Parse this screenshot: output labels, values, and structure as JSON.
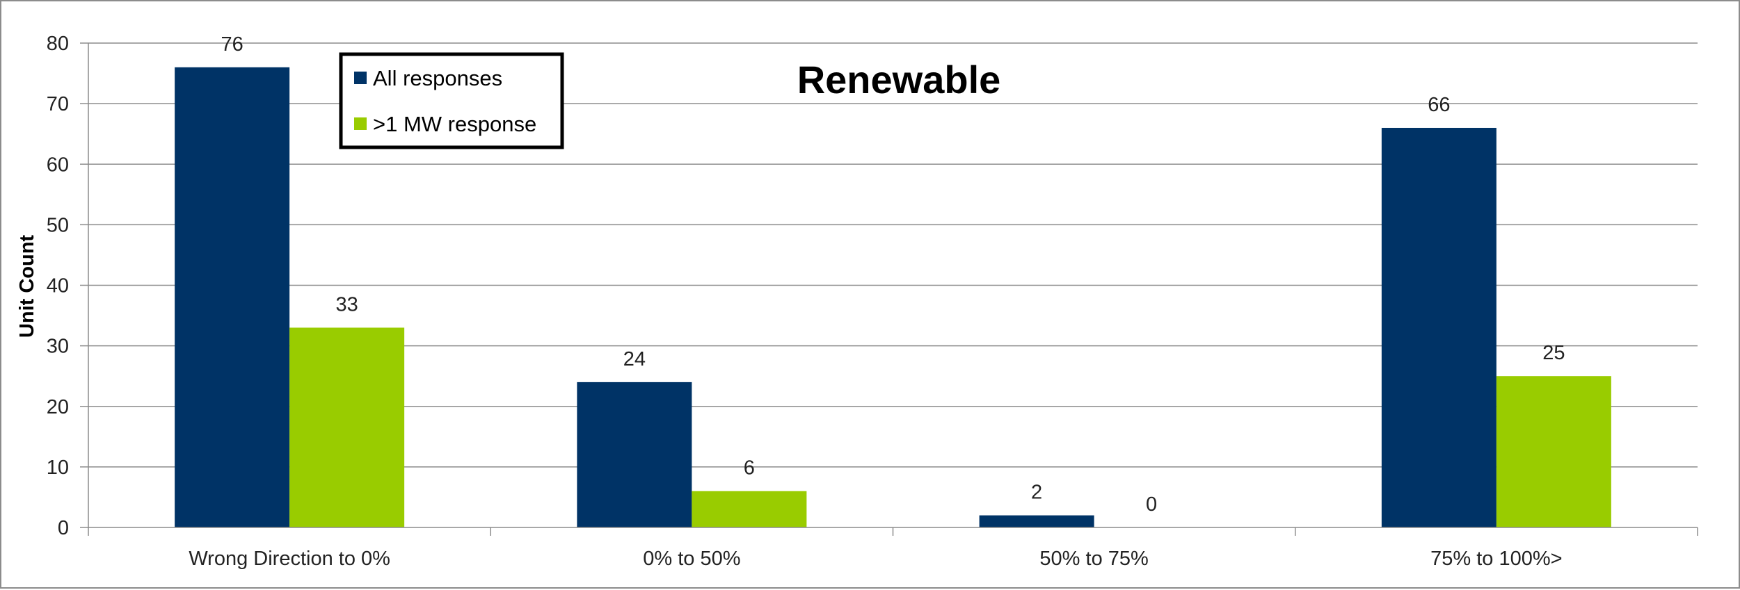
{
  "chart_data": {
    "type": "bar",
    "title": "Renewable",
    "xlabel": "",
    "ylabel": "Unit Count",
    "categories": [
      "Wrong Direction to 0%",
      "0% to 50%",
      "50% to 75%",
      "75% to 100%>"
    ],
    "series": [
      {
        "name": "All responses",
        "color": "#003366",
        "values": [
          76,
          24,
          2,
          66
        ]
      },
      {
        "name": ">1 MW response",
        "color": "#99cc00",
        "values": [
          33,
          6,
          0,
          25
        ]
      }
    ],
    "ylim": [
      0,
      80
    ],
    "yticks": [
      0,
      10,
      20,
      30,
      40,
      50,
      60,
      70,
      80
    ],
    "grid": true,
    "legend_position": "top-left"
  }
}
